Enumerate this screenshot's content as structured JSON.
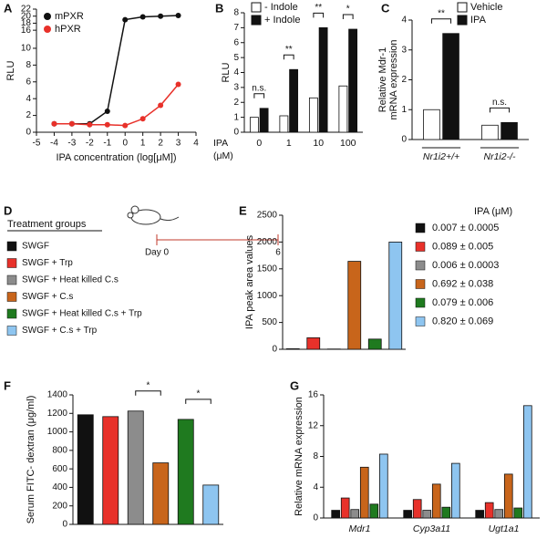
{
  "chart_data": [
    {
      "type": "line",
      "panel": "A",
      "xlabel": "IPA concentration (log[μM])",
      "ylabel": "RLU",
      "x": [
        -4,
        -3,
        -2,
        -1,
        0,
        1,
        2,
        3
      ],
      "series": [
        {
          "name": "mPXR",
          "color": "#111111",
          "values": [
            1,
            1,
            1,
            2.5,
            19,
            19.8,
            20,
            20.2
          ]
        },
        {
          "name": "hPXR",
          "color": "#e8312a",
          "values": [
            1,
            1,
            0.9,
            0.9,
            0.8,
            1.6,
            3.2,
            5.7
          ]
        }
      ],
      "xlim": [
        -5,
        4
      ],
      "xticks": [
        -5,
        -4,
        -3,
        -2,
        -1,
        0,
        1,
        2,
        3,
        4
      ],
      "ylim": [
        0,
        22
      ],
      "ybreak": [
        11,
        15
      ],
      "yticks": [
        0,
        2,
        4,
        6,
        8,
        10,
        16,
        18,
        20,
        22
      ]
    },
    {
      "type": "bar",
      "panel": "B",
      "ylabel": "RLU",
      "xlabel": [
        "IPA",
        "(μM)"
      ],
      "categories": [
        "0",
        "1",
        "10",
        "100"
      ],
      "series": [
        {
          "name": "- Indole",
          "color": "#ffffff",
          "values": [
            1.0,
            1.1,
            2.3,
            3.1
          ]
        },
        {
          "name": "+ Indole",
          "color": "#111111",
          "values": [
            1.6,
            4.2,
            7.0,
            6.9
          ]
        }
      ],
      "ylim": [
        0,
        8
      ],
      "yticks": [
        0,
        1,
        2,
        3,
        4,
        5,
        6,
        7,
        8
      ],
      "annotations": [
        "n.s.",
        "**",
        "**",
        "*"
      ]
    },
    {
      "type": "bar",
      "panel": "C",
      "ylabel": [
        "Relative Mdr-1",
        "mRNA expression"
      ],
      "categories": [
        "Nr1i2+/+",
        "Nr1i2-/-"
      ],
      "series": [
        {
          "name": "Vehicle",
          "color": "#ffffff",
          "values": [
            1.0,
            0.48
          ]
        },
        {
          "name": "IPA",
          "color": "#111111",
          "values": [
            3.55,
            0.57
          ]
        }
      ],
      "ylim": [
        0,
        4
      ],
      "yticks": [
        0,
        1,
        2,
        3,
        4
      ],
      "annotations": [
        "**",
        "n.s."
      ]
    },
    {
      "type": "bar",
      "panel": "E",
      "ylabel": "IPA peak area values",
      "values": [
        10,
        215,
        5,
        1640,
        190,
        2000
      ],
      "colors": [
        "#111111",
        "#e8312a",
        "#8c8c8c",
        "#c8651b",
        "#1f7a1f",
        "#8ec5f0"
      ],
      "ylim": [
        0,
        2500
      ],
      "yticks": [
        0,
        500,
        1000,
        1500,
        2000,
        2500
      ],
      "legend_title": "IPA (μM)",
      "legend_labels": [
        "0.007 ± 0.0005",
        "0.089 ± 0.005",
        "0.006 ± 0.0003",
        "0.692 ± 0.038",
        "0.079 ± 0.006",
        "0.820 ± 0.069"
      ]
    },
    {
      "type": "bar",
      "panel": "F",
      "ylabel": "Serum FITC- dextran (μg/ml)",
      "values": [
        1185,
        1165,
        1225,
        665,
        1135,
        425
      ],
      "colors": [
        "#111111",
        "#e8312a",
        "#8c8c8c",
        "#c8651b",
        "#1f7a1f",
        "#8ec5f0"
      ],
      "ylim": [
        0,
        1400
      ],
      "yticks": [
        0,
        200,
        400,
        600,
        800,
        1000,
        1200,
        1400
      ],
      "annotations": [
        "*",
        "*"
      ]
    },
    {
      "type": "bar",
      "panel": "G",
      "ylabel": "Relative mRNA expression",
      "categories": [
        "Mdr1",
        "Cyp3a11",
        "Ugt1a1"
      ],
      "series": [
        {
          "color": "#111111",
          "values": [
            1,
            1,
            1
          ]
        },
        {
          "color": "#e8312a",
          "values": [
            2.6,
            2.4,
            2.0
          ]
        },
        {
          "color": "#8c8c8c",
          "values": [
            1.1,
            1.0,
            1.1
          ]
        },
        {
          "color": "#c8651b",
          "values": [
            6.6,
            4.4,
            5.7
          ]
        },
        {
          "color": "#1f7a1f",
          "values": [
            1.8,
            1.4,
            1.3
          ]
        },
        {
          "color": "#8ec5f0",
          "values": [
            8.3,
            7.1,
            14.6
          ]
        }
      ],
      "ylim": [
        0,
        16
      ],
      "yticks": [
        0,
        4,
        8,
        12,
        16
      ]
    }
  ],
  "treatment": {
    "panel": "D",
    "title": "Treatment groups",
    "groups": [
      "SWGF",
      "SWGF + Trp",
      "SWGF + Heat killed C.s",
      "SWGF + C.s",
      "SWGF + Heat killed C.s + Trp",
      "SWGF + C.s + Trp"
    ],
    "colors": [
      "#111111",
      "#e8312a",
      "#8c8c8c",
      "#c8651b",
      "#1f7a1f",
      "#8ec5f0"
    ],
    "timeline": [
      "Day 0",
      "6"
    ]
  }
}
